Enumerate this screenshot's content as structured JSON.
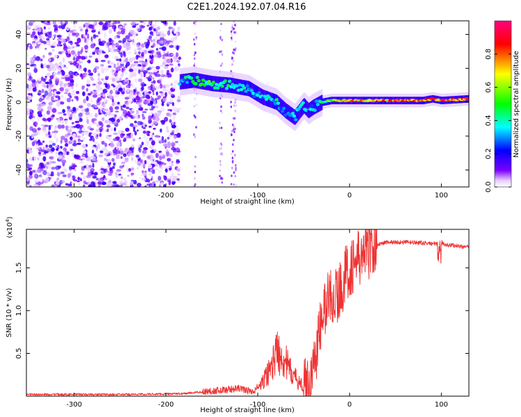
{
  "title": "C2E1.2024.192.07.04.R16",
  "chart_data": [
    {
      "type": "heatmap",
      "xlabel": "Height of straight line (km)",
      "ylabel": "Frequency (Hz)",
      "xlim": [
        -352,
        130
      ],
      "ylim": [
        -50,
        48
      ],
      "xticks": [
        -300,
        -200,
        -100,
        0,
        100
      ],
      "yticks": [
        -40,
        -20,
        0,
        20,
        40
      ],
      "colorbar": {
        "label": "Normalized spectral amplitude",
        "range": [
          0,
          1
        ],
        "ticks": [
          0.0,
          0.2,
          0.4,
          0.6,
          0.8
        ],
        "tick_labels": [
          "0.0",
          "0.2",
          "0.4",
          "0.6",
          "0.8"
        ],
        "colormap": [
          "#ffffff",
          "#7a00ff",
          "#0000ff",
          "#00ffff",
          "#00ff00",
          "#ffff00",
          "#ff0000",
          "#ff0080"
        ]
      },
      "ridge": {
        "x": [
          -185,
          -170,
          -150,
          -130,
          -110,
          -95,
          -80,
          -70,
          -60,
          -50,
          -45,
          -40,
          -30,
          -20,
          0,
          20,
          40,
          60,
          80,
          90,
          100,
          130
        ],
        "y": [
          12,
          13,
          11,
          10,
          8,
          3,
          0,
          -5,
          -9,
          -2,
          -5,
          -3,
          0,
          1,
          1,
          1,
          1,
          1,
          1,
          2,
          1,
          2
        ],
        "amplitude": [
          0.35,
          0.45,
          0.5,
          0.45,
          0.4,
          0.35,
          0.4,
          0.3,
          0.35,
          0.4,
          0.3,
          0.35,
          0.45,
          0.6,
          0.75,
          0.8,
          0.85,
          0.85,
          0.9,
          0.8,
          0.9,
          0.85
        ]
      },
      "noise_region": {
        "x": [
          -352,
          -185
        ],
        "y": [
          -50,
          48
        ]
      }
    },
    {
      "type": "line",
      "xlabel": "Height of straight line (km)",
      "ylabel": "SNR (10 * v/v)",
      "multiplier_label": "(x10",
      "multiplier_exp": "4",
      "multiplier_close": ")",
      "xlim": [
        -352,
        130
      ],
      "ylim": [
        0,
        1.95
      ],
      "xticks": [
        -300,
        -200,
        -100,
        0,
        100
      ],
      "yticks": [
        0.5,
        1.0,
        1.5
      ],
      "ytick_labels": [
        "0.5",
        "1.0",
        "1.5"
      ],
      "color": "#ee3333",
      "series": [
        {
          "x": [
            -352,
            -300,
            -250,
            -200,
            -180,
            -160,
            -140,
            -120,
            -105,
            -95,
            -85,
            -78,
            -72,
            -65,
            -58,
            -50,
            -45,
            -40,
            -35,
            -30,
            -25,
            -20,
            -15,
            -10,
            -5,
            0,
            5,
            10,
            15,
            20,
            25,
            30,
            40,
            50,
            60,
            80,
            95,
            100,
            105,
            115,
            130
          ],
          "y": [
            0.02,
            0.02,
            0.02,
            0.025,
            0.03,
            0.05,
            0.07,
            0.09,
            0.05,
            0.15,
            0.35,
            0.55,
            0.45,
            0.3,
            0.2,
            0.1,
            0.12,
            0.3,
            0.6,
            0.9,
            1.1,
            1.2,
            1.15,
            1.25,
            1.4,
            1.5,
            1.55,
            1.6,
            1.65,
            1.7,
            1.75,
            1.77,
            1.8,
            1.8,
            1.8,
            1.79,
            1.78,
            1.8,
            1.77,
            1.76,
            1.74
          ]
        }
      ]
    }
  ]
}
